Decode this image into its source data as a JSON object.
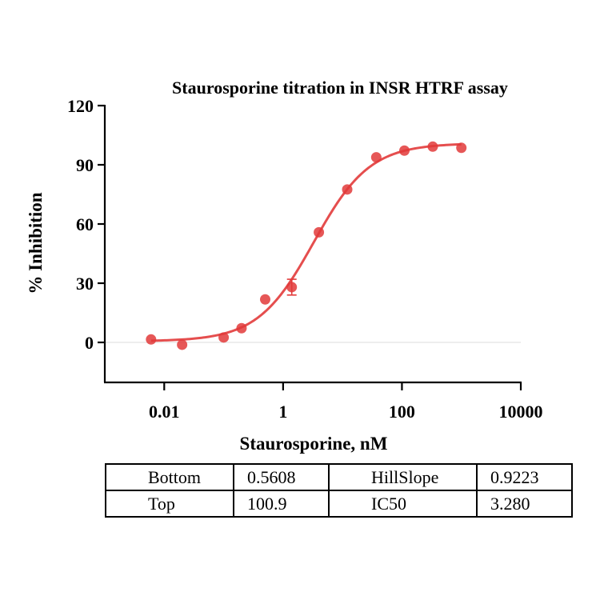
{
  "chart_data": {
    "type": "scatter",
    "title": "Staurosporine titration in INSR HTRF assay",
    "xlabel": "Staurosporine, nM",
    "ylabel": "% Inhibition",
    "x_scale": "log",
    "xlim": [
      0.001,
      10000
    ],
    "ylim": [
      -15,
      120
    ],
    "x_tick_values": [
      0.01,
      1,
      100,
      10000
    ],
    "x_tick_labels": [
      "0.01",
      "1",
      "100",
      "10000"
    ],
    "y_tick_values": [
      0,
      30,
      60,
      90,
      120
    ],
    "y_tick_labels": [
      "0",
      "30",
      "60",
      "90",
      "120"
    ],
    "zero_reference_line": true,
    "grid": false,
    "point_color": "#e23a3a",
    "curve_color": "#e54e4e",
    "points": [
      {
        "x": 0.006,
        "y": 1.5
      },
      {
        "x": 0.02,
        "y": -1.2
      },
      {
        "x": 0.1,
        "y": 2.5
      },
      {
        "x": 0.2,
        "y": 7.2
      },
      {
        "x": 0.5,
        "y": 21.8
      },
      {
        "x": 1.4,
        "y": 28,
        "err": 4
      },
      {
        "x": 4,
        "y": 55.8
      },
      {
        "x": 12,
        "y": 77.5
      },
      {
        "x": 37,
        "y": 93.8
      },
      {
        "x": 110,
        "y": 97.2
      },
      {
        "x": 330,
        "y": 99.2
      },
      {
        "x": 1000,
        "y": 98.6
      }
    ],
    "fit": {
      "model": "four-parameter logistic",
      "bottom": 0.5608,
      "top": 100.9,
      "hillslope": 0.9223,
      "ic50": 3.28
    }
  },
  "params_table": {
    "rows": [
      [
        "Bottom",
        "0.5608",
        "HillSlope",
        "0.9223"
      ],
      [
        "Top",
        "100.9",
        "IC50",
        "3.280"
      ]
    ]
  }
}
